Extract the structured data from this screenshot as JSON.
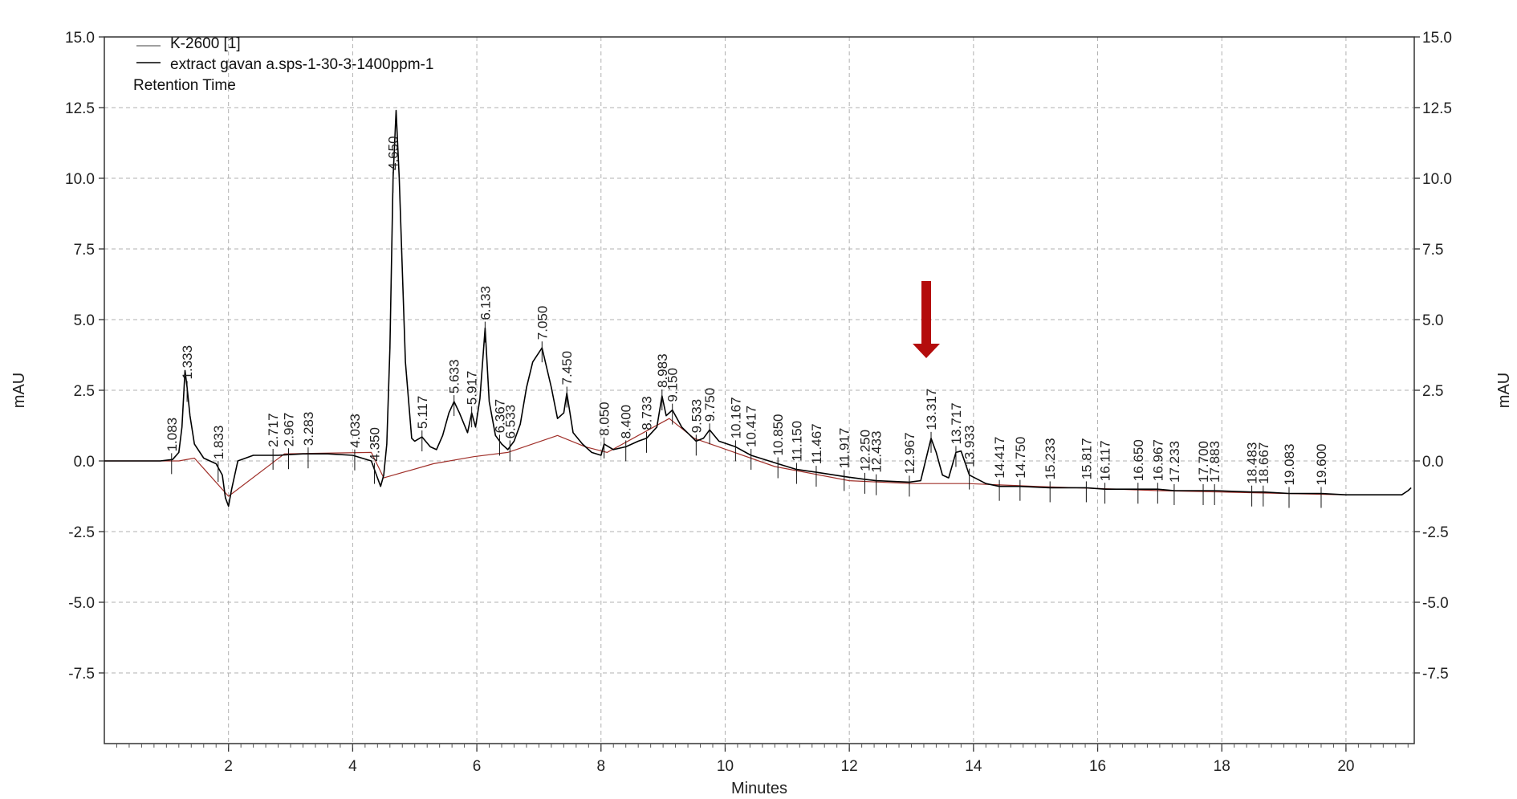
{
  "chart_data": {
    "type": "line",
    "title": "",
    "xlabel": "Minutes",
    "ylabel_left": "mAU",
    "ylabel_right": "mAU",
    "xlim": [
      0,
      21.1
    ],
    "ylim": [
      -10.0,
      15.0
    ],
    "x_ticks": [
      2,
      4,
      6,
      8,
      10,
      12,
      14,
      16,
      18,
      20
    ],
    "y_ticks": [
      15.0,
      12.5,
      10.0,
      7.5,
      5.0,
      2.5,
      0.0,
      -2.5,
      -5.0,
      -7.5
    ],
    "y_tick_labels": [
      "15.0",
      "12.5",
      "10.0",
      "7.5",
      "5.0",
      "2.5",
      "0.0",
      "-2.5",
      "-5.0",
      "-7.5"
    ],
    "grid": true,
    "legend_position": "top-left",
    "legend": {
      "detector": "K-2600 [1]",
      "series_name": "extract gavan a.sps-1-30-3-1400ppm-1",
      "annotation": "Retention Time"
    },
    "series": [
      {
        "name": "extract gavan a.sps-1-30-3-1400ppm-1",
        "color": "#000000",
        "x": [
          0,
          0.5,
          0.9,
          1.1,
          1.2,
          1.25,
          1.3,
          1.333,
          1.38,
          1.45,
          1.6,
          1.8,
          1.9,
          1.95,
          2.0,
          2.05,
          2.15,
          2.4,
          2.8,
          3.2,
          3.6,
          4.0,
          4.3,
          4.4,
          4.45,
          4.5,
          4.55,
          4.6,
          4.65,
          4.7,
          4.75,
          4.85,
          4.95,
          5.0,
          5.117,
          5.25,
          5.35,
          5.45,
          5.55,
          5.633,
          5.72,
          5.85,
          5.917,
          5.98,
          6.05,
          6.133,
          6.2,
          6.3,
          6.4,
          6.5,
          6.6,
          6.7,
          6.8,
          6.9,
          7.05,
          7.2,
          7.3,
          7.4,
          7.45,
          7.55,
          7.7,
          7.85,
          8.0,
          8.05,
          8.2,
          8.4,
          8.6,
          8.733,
          8.9,
          8.983,
          9.05,
          9.15,
          9.3,
          9.533,
          9.65,
          9.75,
          9.9,
          10.167,
          10.417,
          10.85,
          11.15,
          11.467,
          11.917,
          12.25,
          12.433,
          12.967,
          13.15,
          13.25,
          13.317,
          13.4,
          13.5,
          13.6,
          13.717,
          13.8,
          13.933,
          14.2,
          14.417,
          14.75,
          15.233,
          15.817,
          16.117,
          16.65,
          16.967,
          17.233,
          17.7,
          17.883,
          18.483,
          18.667,
          19.083,
          19.6,
          20.0,
          20.5,
          20.9,
          21.0,
          21.05
        ],
        "y": [
          0.0,
          0.0,
          0.0,
          0.05,
          0.3,
          1.2,
          3.2,
          2.6,
          1.6,
          0.6,
          0.1,
          -0.1,
          -0.5,
          -1.3,
          -1.6,
          -1.0,
          0.0,
          0.2,
          0.2,
          0.25,
          0.25,
          0.2,
          0.0,
          -0.6,
          -0.9,
          -0.5,
          0.6,
          4.0,
          10.0,
          12.4,
          10.0,
          3.5,
          0.8,
          0.7,
          0.85,
          0.5,
          0.4,
          0.9,
          1.7,
          2.1,
          1.7,
          1.0,
          1.7,
          1.2,
          2.2,
          4.7,
          2.1,
          0.9,
          0.6,
          0.4,
          0.7,
          1.3,
          2.6,
          3.5,
          4.0,
          2.6,
          1.5,
          1.7,
          2.4,
          1.0,
          0.6,
          0.3,
          0.2,
          0.6,
          0.4,
          0.5,
          0.7,
          0.8,
          1.2,
          2.3,
          1.6,
          1.8,
          1.2,
          0.7,
          0.8,
          1.1,
          0.7,
          0.5,
          0.2,
          -0.1,
          -0.3,
          -0.4,
          -0.55,
          -0.65,
          -0.7,
          -0.75,
          -0.7,
          0.2,
          0.8,
          0.3,
          -0.5,
          -0.6,
          0.3,
          0.35,
          -0.5,
          -0.8,
          -0.9,
          -0.9,
          -0.95,
          -0.95,
          -1.0,
          -1.0,
          -1.0,
          -1.05,
          -1.05,
          -1.05,
          -1.1,
          -1.1,
          -1.15,
          -1.15,
          -1.2,
          -1.2,
          -1.2,
          -1.05,
          -0.95
        ]
      },
      {
        "name": "",
        "color": "#a0302a",
        "x": [
          0.0,
          1.2,
          1.45,
          2.0,
          2.9,
          4.3,
          4.5,
          5.3,
          5.95,
          6.5,
          7.3,
          7.75,
          8.1,
          9.1,
          9.5,
          10.8,
          12.0,
          13.0,
          13.9,
          15.0,
          17.0,
          19.0,
          20.0
        ],
        "y": [
          0.0,
          0.0,
          0.1,
          -1.25,
          0.25,
          0.3,
          -0.6,
          -0.1,
          0.15,
          0.3,
          0.9,
          0.5,
          0.3,
          1.5,
          0.8,
          -0.2,
          -0.7,
          -0.8,
          -0.8,
          -0.9,
          -1.05,
          -1.15,
          -1.2
        ]
      }
    ],
    "peak_labels": [
      {
        "x": 1.083,
        "label": "1.083"
      },
      {
        "x": 1.333,
        "label": "1.333"
      },
      {
        "x": 1.833,
        "label": "1.833"
      },
      {
        "x": 2.717,
        "label": "2.717"
      },
      {
        "x": 2.967,
        "label": "2.967"
      },
      {
        "x": 3.283,
        "label": "3.283"
      },
      {
        "x": 4.033,
        "label": "4.033"
      },
      {
        "x": 4.35,
        "label": "4.350"
      },
      {
        "x": 4.65,
        "label": "4.650"
      },
      {
        "x": 5.117,
        "label": "5.117"
      },
      {
        "x": 5.633,
        "label": "5.633"
      },
      {
        "x": 5.917,
        "label": "5.917"
      },
      {
        "x": 6.133,
        "label": "6.133"
      },
      {
        "x": 6.367,
        "label": "6.367"
      },
      {
        "x": 6.533,
        "label": "6.533"
      },
      {
        "x": 7.05,
        "label": "7.050"
      },
      {
        "x": 7.45,
        "label": "7.450"
      },
      {
        "x": 8.05,
        "label": "8.050"
      },
      {
        "x": 8.4,
        "label": "8.400"
      },
      {
        "x": 8.733,
        "label": "8.733"
      },
      {
        "x": 8.983,
        "label": "8.983"
      },
      {
        "x": 9.15,
        "label": "9.150"
      },
      {
        "x": 9.533,
        "label": "9.533"
      },
      {
        "x": 9.75,
        "label": "9.750"
      },
      {
        "x": 10.167,
        "label": "10.167"
      },
      {
        "x": 10.417,
        "label": "10.417"
      },
      {
        "x": 10.85,
        "label": "10.850"
      },
      {
        "x": 11.15,
        "label": "11.150"
      },
      {
        "x": 11.467,
        "label": "11.467"
      },
      {
        "x": 11.917,
        "label": "11.917"
      },
      {
        "x": 12.25,
        "label": "12.250"
      },
      {
        "x": 12.433,
        "label": "12.433"
      },
      {
        "x": 12.967,
        "label": "12.967"
      },
      {
        "x": 13.317,
        "label": "13.317"
      },
      {
        "x": 13.717,
        "label": "13.717"
      },
      {
        "x": 13.933,
        "label": "13.933"
      },
      {
        "x": 14.417,
        "label": "14.417"
      },
      {
        "x": 14.75,
        "label": "14.750"
      },
      {
        "x": 15.233,
        "label": "15.233"
      },
      {
        "x": 15.817,
        "label": "15.817"
      },
      {
        "x": 16.117,
        "label": "16.117"
      },
      {
        "x": 16.65,
        "label": "16.650"
      },
      {
        "x": 16.967,
        "label": "16.967"
      },
      {
        "x": 17.233,
        "label": "17.233"
      },
      {
        "x": 17.7,
        "label": "17.700"
      },
      {
        "x": 17.883,
        "label": "17.883"
      },
      {
        "x": 18.483,
        "label": "18.483"
      },
      {
        "x": 18.667,
        "label": "18.667"
      },
      {
        "x": 19.083,
        "label": "19.083"
      },
      {
        "x": 19.6,
        "label": "19.600"
      }
    ],
    "arrow_marker": {
      "x": 13.317,
      "color": "#b40c0c"
    }
  }
}
